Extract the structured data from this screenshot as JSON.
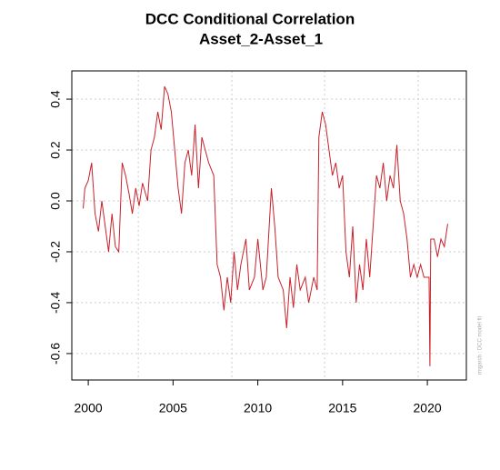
{
  "chart_data": {
    "type": "line",
    "title": "DCC Conditional Correlation",
    "subtitle": "Asset_2-Asset_1",
    "side_note": "rmgarch  :  DCC model fit",
    "xlim": [
      1999.03,
      2022.3
    ],
    "xticks": [
      2000,
      2005,
      2010,
      2015,
      2020
    ],
    "ylim": [
      -0.704,
      0.511
    ],
    "yticks": [
      -0.6,
      -0.4,
      -0.2,
      {
        "value": 0,
        "label": "0.0"
      },
      0.2,
      0.4
    ],
    "xgrid": [
      2002.95,
      2008.47,
      2013.94,
      2019.46
    ],
    "grid": true,
    "series": [
      {
        "color": "#c8202a",
        "x": [
          1999.7,
          1999.8,
          2000.0,
          2000.2,
          2000.4,
          2000.6,
          2000.8,
          2001.0,
          2001.2,
          2001.4,
          2001.6,
          2001.8,
          2002.0,
          2002.2,
          2002.4,
          2002.6,
          2002.8,
          2003.0,
          2003.2,
          2003.5,
          2003.7,
          2003.9,
          2004.1,
          2004.3,
          2004.5,
          2004.7,
          2004.9,
          2005.1,
          2005.3,
          2005.5,
          2005.7,
          2005.9,
          2006.1,
          2006.3,
          2006.5,
          2006.7,
          2006.9,
          2007.1,
          2007.4,
          2007.6,
          2007.8,
          2008.0,
          2008.2,
          2008.4,
          2008.6,
          2008.8,
          2009.0,
          2009.3,
          2009.5,
          2009.8,
          2010.0,
          2010.3,
          2010.5,
          2010.8,
          2011.0,
          2011.2,
          2011.5,
          2011.7,
          2011.9,
          2012.1,
          2012.3,
          2012.5,
          2012.8,
          2013.0,
          2013.3,
          2013.5,
          2013.6,
          2013.8,
          2014.0,
          2014.2,
          2014.4,
          2014.6,
          2014.8,
          2015.0,
          2015.2,
          2015.4,
          2015.6,
          2015.8,
          2016.0,
          2016.2,
          2016.4,
          2016.6,
          2016.8,
          2017.0,
          2017.2,
          2017.4,
          2017.6,
          2017.8,
          2018.0,
          2018.2,
          2018.4,
          2018.6,
          2018.8,
          2019.0,
          2019.2,
          2019.4,
          2019.6,
          2019.8,
          2020.0,
          2020.1,
          2020.15,
          2020.2,
          2020.4,
          2020.6,
          2020.8,
          2021.0,
          2021.2
        ],
        "values": [
          -0.03,
          0.05,
          0.08,
          0.15,
          -0.05,
          -0.12,
          0.0,
          -0.1,
          -0.2,
          -0.05,
          -0.18,
          -0.2,
          0.15,
          0.1,
          0.03,
          -0.05,
          0.05,
          -0.02,
          0.07,
          0.0,
          0.2,
          0.25,
          0.35,
          0.28,
          0.45,
          0.42,
          0.35,
          0.2,
          0.05,
          -0.05,
          0.15,
          0.2,
          0.1,
          0.3,
          0.05,
          0.25,
          0.2,
          0.15,
          0.1,
          -0.25,
          -0.3,
          -0.43,
          -0.3,
          -0.4,
          -0.2,
          -0.35,
          -0.25,
          -0.15,
          -0.35,
          -0.3,
          -0.15,
          -0.35,
          -0.3,
          0.05,
          -0.1,
          -0.3,
          -0.35,
          -0.5,
          -0.3,
          -0.42,
          -0.25,
          -0.35,
          -0.3,
          -0.4,
          -0.3,
          -0.35,
          0.25,
          0.35,
          0.3,
          0.2,
          0.1,
          0.15,
          0.05,
          0.1,
          -0.2,
          -0.3,
          -0.1,
          -0.4,
          -0.25,
          -0.35,
          -0.15,
          -0.3,
          -0.1,
          0.1,
          0.05,
          0.15,
          0.0,
          0.1,
          0.05,
          0.22,
          0.0,
          -0.05,
          -0.15,
          -0.3,
          -0.25,
          -0.3,
          -0.25,
          -0.3,
          -0.3,
          -0.3,
          -0.65,
          -0.15,
          -0.15,
          -0.22,
          -0.15,
          -0.18,
          -0.09
        ]
      }
    ]
  }
}
